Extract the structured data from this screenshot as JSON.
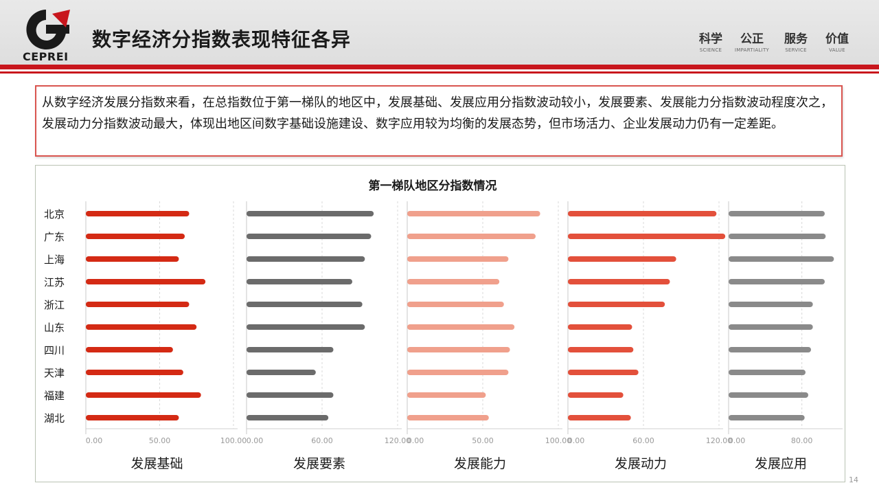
{
  "header": {
    "logo_text": "CEPREI",
    "title": "数字经济分指数表现特征各异",
    "values": [
      {
        "cn": "科学",
        "en": "SCIENCE"
      },
      {
        "cn": "公正",
        "en": "IMPARTIALITY"
      },
      {
        "cn": "服务",
        "en": "SERVICE"
      },
      {
        "cn": "价值",
        "en": "VALUE"
      }
    ]
  },
  "summary": "从数字经济发展分指数来看，在总指数位于第一梯队的地区中，发展基础、发展应用分指数波动较小，发展要素、发展能力分指数波动程度次之，发展动力分指数波动最大，体现出地区间数字基础设施建设、数字应用较为均衡的发展态势，但市场活力、企业发展动力仍有一定差距。",
  "page_number": "14",
  "chart_data": {
    "type": "bar",
    "orientation": "horizontal",
    "title": "第一梯队地区分指数情况",
    "categories": [
      "北京",
      "广东",
      "上海",
      "江苏",
      "浙江",
      "山东",
      "四川",
      "天津",
      "福建",
      "湖北"
    ],
    "panels": [
      {
        "name": "发展基础",
        "color": "#d42a14",
        "xlim": [
          0,
          100
        ],
        "ticks": [
          0,
          50,
          100
        ],
        "tick_labels": [
          "0.00",
          "50.00",
          "100.00"
        ],
        "values": [
          70,
          67,
          63,
          81,
          70,
          75,
          59,
          66,
          78,
          63
        ]
      },
      {
        "name": "发展要素",
        "color": "#6b6b6b",
        "xlim": [
          0,
          120
        ],
        "ticks": [
          0,
          60,
          120
        ],
        "tick_labels": [
          "0.00",
          "60.00",
          "120.00"
        ],
        "values": [
          101,
          99,
          94,
          84,
          92,
          94,
          69,
          55,
          69,
          65
        ]
      },
      {
        "name": "发展能力",
        "color": "#f0a08c",
        "xlim": [
          0,
          100
        ],
        "ticks": [
          0,
          50,
          100
        ],
        "tick_labels": [
          "0.00",
          "50.00",
          "100.00"
        ],
        "values": [
          88,
          85,
          67,
          61,
          64,
          71,
          68,
          67,
          52,
          54
        ]
      },
      {
        "name": "发展动力",
        "color": "#e3503b",
        "xlim": [
          0,
          120
        ],
        "ticks": [
          0,
          60,
          120
        ],
        "tick_labels": [
          "0.00",
          "60.00",
          "120.00"
        ],
        "values": [
          118,
          125,
          86,
          81,
          77,
          51,
          52,
          56,
          44,
          50
        ]
      },
      {
        "name": "发展应用",
        "color": "#8a8a8a",
        "xlim": [
          0,
          120
        ],
        "ticks": [
          0,
          80
        ],
        "tick_labels": [
          "0.00",
          "80.00"
        ],
        "values": [
          105,
          106,
          115,
          105,
          92,
          92,
          90,
          84,
          87,
          83
        ]
      }
    ]
  }
}
